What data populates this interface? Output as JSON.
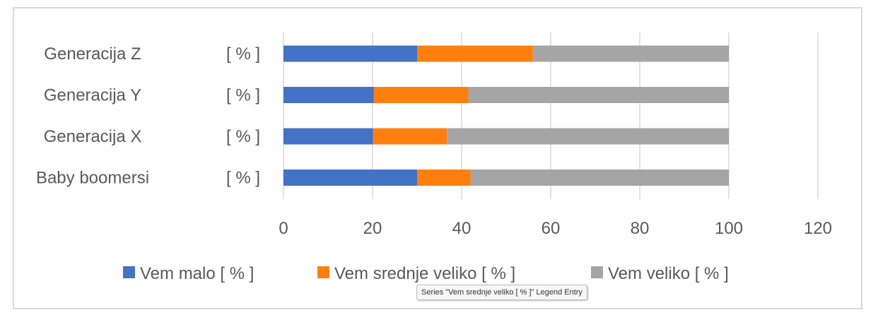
{
  "chart_data": {
    "type": "bar",
    "orientation": "horizontal",
    "stacked": true,
    "categories": [
      "Generacija Z",
      "Generacija Y",
      "Generacija X",
      "Baby boomersi"
    ],
    "category_unit_label": "[ % ]",
    "series": [
      {
        "name": "Vem malo  [ % ]",
        "color": "#4472c4",
        "values": [
          30,
          20.3,
          20.1,
          30
        ]
      },
      {
        "name": "Vem srednje veliko  [ % ]",
        "color": "#ff7f0e",
        "values": [
          26,
          21.2,
          16.6,
          12
        ]
      },
      {
        "name": "Vem veliko  [ % ]",
        "color": "#a5a5a5",
        "values": [
          44,
          58.5,
          63.3,
          58
        ]
      }
    ],
    "xlim": [
      0,
      120
    ],
    "xticks": [
      0,
      20,
      40,
      60,
      80,
      100,
      120
    ],
    "grid": true,
    "legend": "bottom"
  },
  "tooltip": "Series \"Vem srednje veliko  [ % ]\" Legend Entry"
}
